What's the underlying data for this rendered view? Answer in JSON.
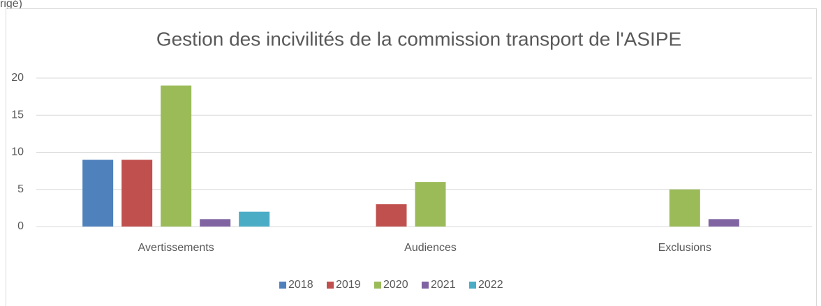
{
  "page_fragment": "rigé)",
  "chart_data": {
    "type": "bar",
    "title": "Gestion des incivilités de la commission transport de l'ASIPE",
    "categories": [
      "Avertissements",
      "Audiences",
      "Exclusions"
    ],
    "series": [
      {
        "name": "2018",
        "color": "#4f81bd",
        "values": [
          9,
          0,
          0
        ]
      },
      {
        "name": "2019",
        "color": "#c0504d",
        "values": [
          9,
          3,
          0
        ]
      },
      {
        "name": "2020",
        "color": "#9bbb59",
        "values": [
          19,
          6,
          5
        ]
      },
      {
        "name": "2021",
        "color": "#8064a2",
        "values": [
          1,
          0,
          1
        ]
      },
      {
        "name": "2022",
        "color": "#4bacc6",
        "values": [
          2,
          0,
          0
        ]
      }
    ],
    "ylim": [
      0,
      20
    ],
    "yticks": [
      0,
      5,
      10,
      15,
      20
    ],
    "grid": true,
    "legend": "bottom"
  }
}
